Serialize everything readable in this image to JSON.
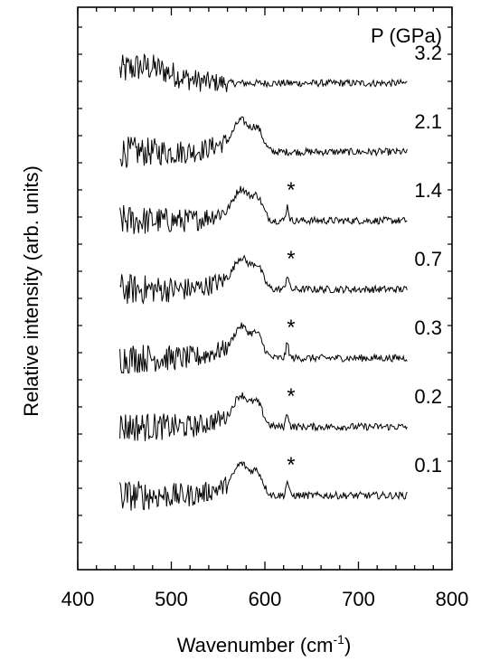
{
  "chart_data": {
    "type": "line",
    "title": "",
    "xlabel": "Wavenumber  (cm",
    "xlabel_sup": "-1",
    "xlabel_close": ")",
    "ylabel": "Relative intensity (arb. units)",
    "xlim": [
      400,
      800
    ],
    "xticks": [
      "400",
      "500",
      "600",
      "700",
      "800"
    ],
    "legend_header": "P (GPa)",
    "grid": false,
    "series": [
      {
        "name": "3.2",
        "offset": 6.0,
        "peak": false,
        "asterisk": false
      },
      {
        "name": "2.1",
        "offset": 5.0,
        "peak": true,
        "asterisk": false
      },
      {
        "name": "1.4",
        "offset": 4.0,
        "peak": true,
        "asterisk": true
      },
      {
        "name": "0.7",
        "offset": 3.0,
        "peak": true,
        "asterisk": true
      },
      {
        "name": "0.3",
        "offset": 2.0,
        "peak": true,
        "asterisk": true
      },
      {
        "name": "0.2",
        "offset": 1.0,
        "peak": true,
        "asterisk": true
      },
      {
        "name": "0.1",
        "offset": 0.0,
        "peak": true,
        "asterisk": true
      }
    ],
    "asterisk_text": "*"
  }
}
